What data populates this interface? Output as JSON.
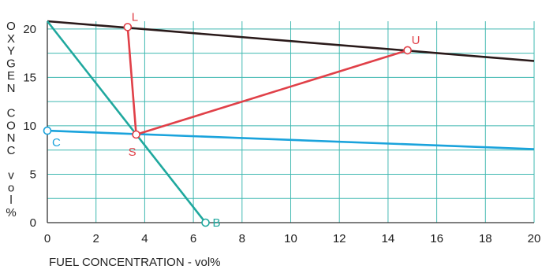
{
  "chart_data": {
    "type": "line",
    "xlabel": "FUEL CONCENTRATION - vol%",
    "ylabel_letters": [
      "O",
      "X",
      "Y",
      "G",
      "E",
      "N",
      "",
      "C",
      "O",
      "N",
      "C",
      "",
      "v",
      "o",
      "l",
      "%"
    ],
    "xlim": [
      0,
      20
    ],
    "ylim": [
      0,
      20.8
    ],
    "x_ticks": [
      0,
      2,
      4,
      6,
      8,
      10,
      12,
      14,
      16,
      18,
      20
    ],
    "y_ticks": [
      0,
      5,
      10,
      15,
      20
    ],
    "grid": true,
    "grid_color": "#3fb8b0",
    "series": [
      {
        "color": "#2a1a1a",
        "points": [
          [
            0,
            20.8
          ],
          [
            20,
            16.7
          ]
        ]
      },
      {
        "color": "#1aa3dc",
        "points": [
          [
            0,
            9.5
          ],
          [
            20,
            7.6
          ]
        ]
      },
      {
        "color": "#1fa89e",
        "points": [
          [
            0,
            20.8
          ],
          [
            6.5,
            0
          ]
        ]
      },
      {
        "color": "#e04048",
        "points": [
          [
            3.3,
            20.2
          ],
          [
            3.65,
            9.1
          ],
          [
            14.8,
            17.8
          ]
        ]
      }
    ],
    "points": [
      {
        "label": "L",
        "x": 3.3,
        "y": 20.2,
        "color": "#e04048",
        "pos": "above-right"
      },
      {
        "label": "U",
        "x": 14.8,
        "y": 17.8,
        "color": "#e04048",
        "pos": "above-right"
      },
      {
        "label": "S",
        "x": 3.65,
        "y": 9.1,
        "color": "#e04048",
        "pos": "below-left"
      },
      {
        "label": "C",
        "x": 0,
        "y": 9.5,
        "color": "#1aa3dc",
        "pos": "below-right"
      },
      {
        "label": "B",
        "x": 6.5,
        "y": 0,
        "color": "#1fa89e",
        "pos": "right"
      }
    ]
  }
}
